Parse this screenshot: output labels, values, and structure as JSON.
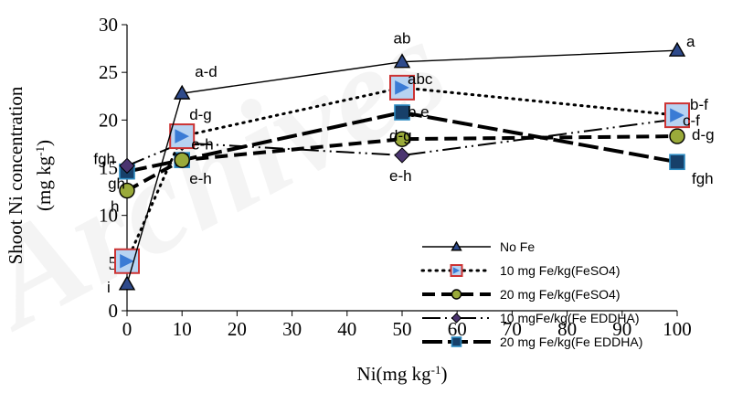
{
  "watermark": "Archives",
  "chart_data": {
    "type": "line",
    "x": [
      0,
      10,
      50,
      100
    ],
    "xlim": [
      0,
      100
    ],
    "ylim": [
      0,
      30
    ],
    "xticks": [
      0,
      10,
      20,
      30,
      40,
      50,
      60,
      70,
      80,
      90,
      100
    ],
    "yticks": [
      0,
      5,
      10,
      15,
      20,
      25,
      30
    ],
    "xlabel_main": "Ni(mg kg",
    "xlabel_sup": "-1",
    "xlabel_end": ")",
    "ylabel_line1": "Shoot Ni concentration",
    "ylabel_line2_main": "(mg kg",
    "ylabel_line2_sup": "-1",
    "ylabel_line2_end": ")",
    "grid": false,
    "legend_position": "lower-right",
    "series": [
      {
        "name": "No Fe",
        "values": [
          2.8,
          22.8,
          26.1,
          27.3
        ],
        "color": "#000000",
        "marker": "triangle",
        "marker_color": "#2e4a8b"
      },
      {
        "name": "10 mg Fe/kg(FeSO4)",
        "values": [
          5.2,
          18.3,
          23.4,
          20.5
        ],
        "color": "#000000",
        "marker": "square-open",
        "marker_color": "#cc3333"
      },
      {
        "name": "20 mg Fe/kg(FeSO4)",
        "values": [
          12.6,
          15.8,
          18.0,
          18.3
        ],
        "color": "#000000",
        "marker": "circle",
        "marker_color": "#9aaa3a"
      },
      {
        "name": "10 mgFe/kg(Fe EDDHA)",
        "values": [
          15.2,
          17.6,
          16.3,
          20.1
        ],
        "color": "#000000",
        "marker": "diamond",
        "marker_color": "#4b3570"
      },
      {
        "name": "20 mg Fe/kg(Fe EDDHA)",
        "values": [
          14.6,
          15.8,
          20.8,
          15.6
        ],
        "color": "#000000",
        "marker": "square",
        "marker_color": "#17406a"
      }
    ],
    "annotations": [
      {
        "text": "a-d",
        "x": 10,
        "y": 22.8
      },
      {
        "text": "ab",
        "x": 50,
        "y": 26.1
      },
      {
        "text": "a",
        "x": 100,
        "y": 27.3
      },
      {
        "text": "abc",
        "x": 50,
        "y": 23.4
      },
      {
        "text": "b-f",
        "x": 100,
        "y": 20.5
      },
      {
        "text": "c-f",
        "x": 100,
        "y": 20.1
      },
      {
        "text": "d-g",
        "x": 100,
        "y": 18.3
      },
      {
        "text": "fgh",
        "x": 100,
        "y": 15.6
      },
      {
        "text": "b e",
        "x": 50,
        "y": 20.8
      },
      {
        "text": "d-g",
        "x": 50,
        "y": 18.0
      },
      {
        "text": "e-h",
        "x": 50,
        "y": 16.3
      },
      {
        "text": "d-g",
        "x": 10,
        "y": 18.3
      },
      {
        "text": "e-h",
        "x": 10,
        "y": 17.6
      },
      {
        "text": "e-h",
        "x": 10,
        "y": 15.8
      },
      {
        "text": "fgh",
        "x": 0,
        "y": 15.2
      },
      {
        "text": "gh",
        "x": 0,
        "y": 14.6
      },
      {
        "text": "h",
        "x": 0,
        "y": 12.6
      },
      {
        "text": "i",
        "x": 0,
        "y": 2.8
      }
    ]
  }
}
